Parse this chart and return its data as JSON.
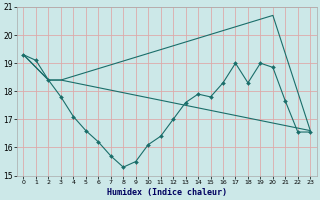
{
  "xlabel": "Humidex (Indice chaleur)",
  "bg_color": "#cce8e8",
  "grid_color": "#ddaaaa",
  "line_color": "#1a6e6a",
  "xlim": [
    -0.5,
    23.5
  ],
  "ylim": [
    15,
    21
  ],
  "xticks": [
    0,
    1,
    2,
    3,
    4,
    5,
    6,
    7,
    8,
    9,
    10,
    11,
    12,
    13,
    14,
    15,
    16,
    17,
    18,
    19,
    20,
    21,
    22,
    23
  ],
  "yticks": [
    15,
    16,
    17,
    18,
    19,
    20,
    21
  ],
  "line1_x": [
    0,
    1,
    2,
    3,
    4,
    5,
    6,
    7,
    8,
    9,
    10,
    11,
    12,
    13,
    14,
    15,
    16,
    17,
    18,
    19,
    20,
    21,
    22,
    23
  ],
  "line1_y": [
    19.3,
    19.1,
    18.4,
    17.8,
    17.1,
    16.6,
    16.2,
    15.7,
    15.3,
    15.5,
    16.1,
    16.4,
    17.0,
    17.6,
    17.9,
    17.8,
    18.3,
    19.0,
    18.3,
    19.0,
    18.85,
    17.65,
    16.55,
    16.55
  ],
  "line2_x": [
    0,
    2,
    3,
    20,
    23
  ],
  "line2_y": [
    19.3,
    18.4,
    18.4,
    20.7,
    16.6
  ],
  "line3_x": [
    0,
    2,
    3,
    23
  ],
  "line3_y": [
    19.3,
    18.4,
    18.4,
    16.6
  ]
}
